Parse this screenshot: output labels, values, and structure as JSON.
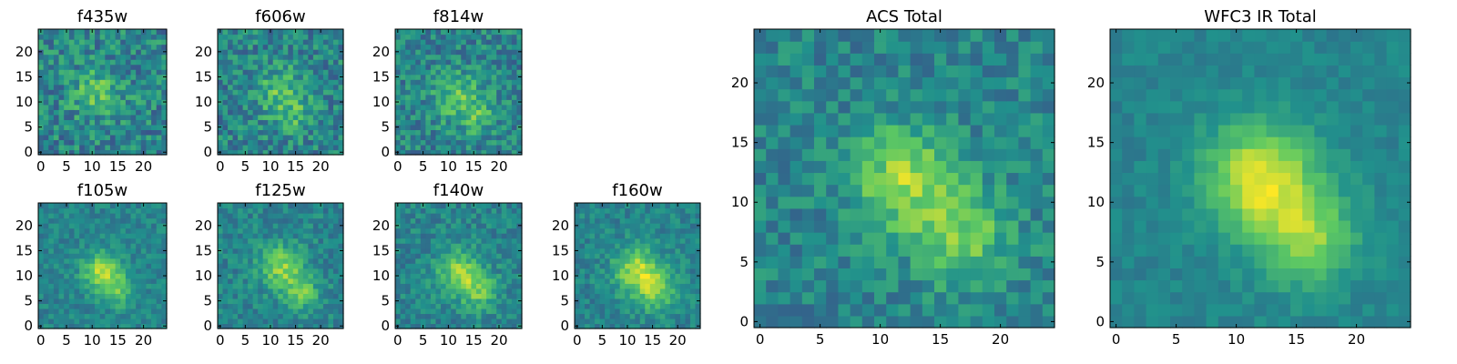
{
  "colormap": [
    "#440154",
    "#3b528b",
    "#21918c",
    "#5ec962",
    "#fde725"
  ],
  "chart_data": [
    {
      "type": "heatmap",
      "title": "f435w",
      "xticks": [
        0,
        5,
        10,
        15,
        20
      ],
      "yticks": [
        0,
        5,
        10,
        15,
        20
      ],
      "grid_size": 25,
      "pixel_seed": 11,
      "sources": [
        {
          "x": 11,
          "y": 12,
          "amp": 0.25,
          "sigma": 3.5
        }
      ],
      "noise": 0.38
    },
    {
      "type": "heatmap",
      "title": "f606w",
      "xticks": [
        0,
        5,
        10,
        15,
        20
      ],
      "yticks": [
        0,
        5,
        10,
        15,
        20
      ],
      "grid_size": 25,
      "pixel_seed": 23,
      "sources": [
        {
          "x": 12,
          "y": 12,
          "amp": 0.25,
          "sigma": 3.5
        },
        {
          "x": 15,
          "y": 7,
          "amp": 0.15,
          "sigma": 2.5
        }
      ],
      "noise": 0.36
    },
    {
      "type": "heatmap",
      "title": "f814w",
      "xticks": [
        0,
        5,
        10,
        15,
        20
      ],
      "yticks": [
        0,
        5,
        10,
        15,
        20
      ],
      "grid_size": 25,
      "pixel_seed": 37,
      "sources": [
        {
          "x": 12,
          "y": 11,
          "amp": 0.25,
          "sigma": 3.5
        },
        {
          "x": 16,
          "y": 7,
          "amp": 0.18,
          "sigma": 2.5
        }
      ],
      "noise": 0.34
    },
    {
      "type": "heatmap",
      "title": "f105w",
      "xticks": [
        0,
        5,
        10,
        15,
        20
      ],
      "yticks": [
        0,
        5,
        10,
        15,
        20
      ],
      "grid_size": 25,
      "pixel_seed": 41,
      "sources": [
        {
          "x": 12,
          "y": 11,
          "amp": 0.42,
          "sigma": 2.6
        },
        {
          "x": 15,
          "y": 7,
          "amp": 0.25,
          "sigma": 2.2
        }
      ],
      "noise": 0.2
    },
    {
      "type": "heatmap",
      "title": "f125w",
      "xticks": [
        0,
        5,
        10,
        15,
        20
      ],
      "yticks": [
        0,
        5,
        10,
        15,
        20
      ],
      "grid_size": 25,
      "pixel_seed": 53,
      "sources": [
        {
          "x": 12,
          "y": 12,
          "amp": 0.35,
          "sigma": 3.0
        },
        {
          "x": 16,
          "y": 7,
          "amp": 0.28,
          "sigma": 2.6
        }
      ],
      "noise": 0.24
    },
    {
      "type": "heatmap",
      "title": "f140w",
      "xticks": [
        0,
        5,
        10,
        15,
        20
      ],
      "yticks": [
        0,
        5,
        10,
        15,
        20
      ],
      "grid_size": 25,
      "pixel_seed": 67,
      "sources": [
        {
          "x": 12,
          "y": 11,
          "amp": 0.35,
          "sigma": 3.0
        },
        {
          "x": 16,
          "y": 7,
          "amp": 0.28,
          "sigma": 2.6
        }
      ],
      "noise": 0.24
    },
    {
      "type": "heatmap",
      "title": "f160w",
      "xticks": [
        0,
        5,
        10,
        15,
        20
      ],
      "yticks": [
        0,
        5,
        10,
        15,
        20
      ],
      "grid_size": 25,
      "pixel_seed": 79,
      "sources": [
        {
          "x": 12,
          "y": 11,
          "amp": 0.42,
          "sigma": 3.2
        },
        {
          "x": 16,
          "y": 7,
          "amp": 0.3,
          "sigma": 2.8
        }
      ],
      "noise": 0.22
    },
    {
      "type": "heatmap",
      "title": "ACS Total",
      "xticks": [
        0,
        5,
        10,
        15,
        20
      ],
      "yticks": [
        0,
        5,
        10,
        15,
        20
      ],
      "grid_size": 25,
      "pixel_seed": 97,
      "sources": [
        {
          "x": 12,
          "y": 12,
          "amp": 0.4,
          "sigma": 3.0
        },
        {
          "x": 17,
          "y": 7,
          "amp": 0.3,
          "sigma": 2.8
        }
      ],
      "noise": 0.26
    },
    {
      "type": "heatmap",
      "title": "WFC3 IR Total",
      "xticks": [
        0,
        5,
        10,
        15,
        20
      ],
      "yticks": [
        0,
        5,
        10,
        15,
        20
      ],
      "grid_size": 25,
      "pixel_seed": 113,
      "sources": [
        {
          "x": 12,
          "y": 12,
          "amp": 0.5,
          "sigma": 3.2
        },
        {
          "x": 16,
          "y": 7,
          "amp": 0.35,
          "sigma": 2.8
        }
      ],
      "noise": 0.12
    }
  ]
}
